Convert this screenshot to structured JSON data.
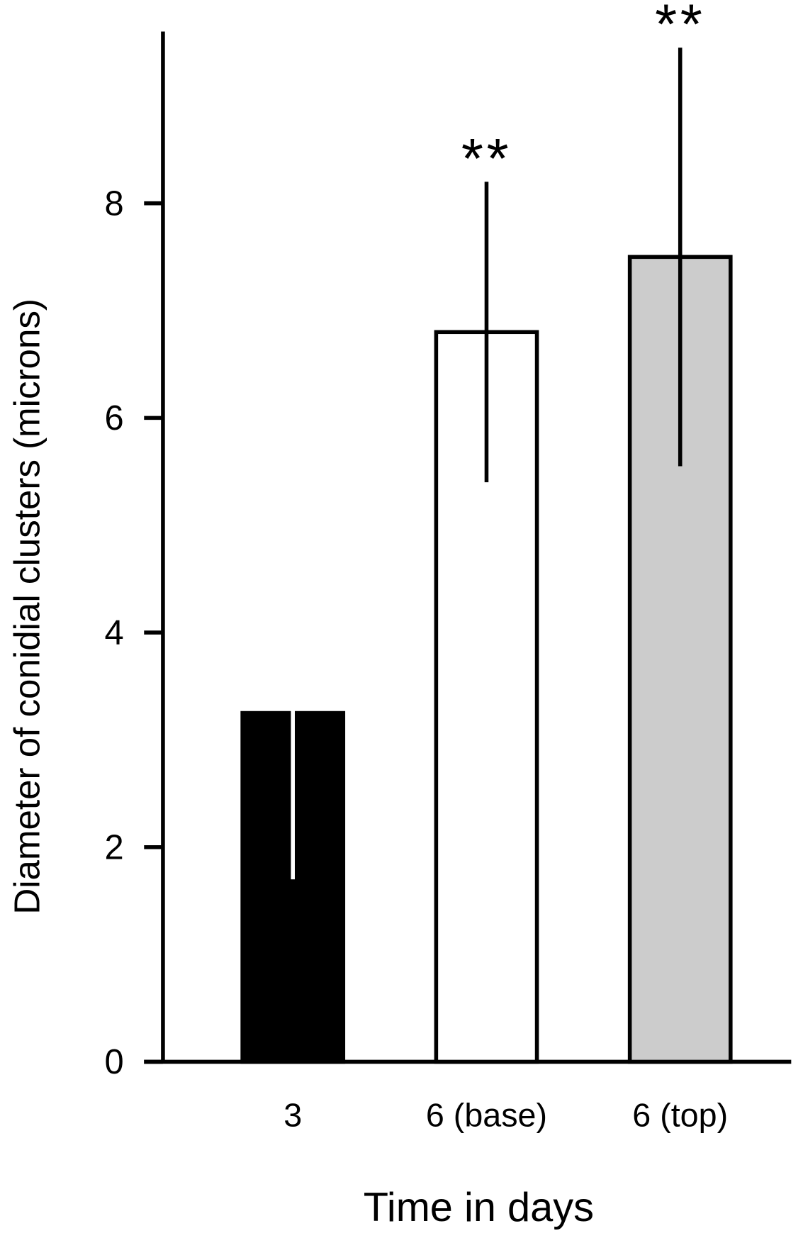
{
  "chart_data": {
    "type": "bar",
    "x_label": "Time in days",
    "y_label": "Diameter of conidial clusters (microns)",
    "categories": [
      "3",
      "6 (base)",
      "6 (top)"
    ],
    "values": [
      3.25,
      6.8,
      7.5
    ],
    "errors": [
      1.55,
      1.4,
      1.95
    ],
    "colors": [
      "#000000",
      "#ffffff",
      "#cccccc"
    ],
    "error_colors": [
      "#ffffff",
      "#000000",
      "#000000"
    ],
    "significance": [
      null,
      "**",
      "**"
    ],
    "ylim": [
      0,
      9.6
    ],
    "yticks": [
      0,
      2,
      4,
      6,
      8
    ],
    "grid": false
  }
}
